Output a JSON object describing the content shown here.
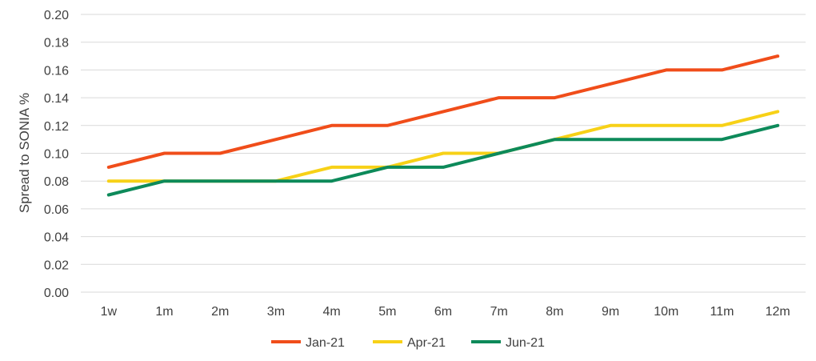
{
  "chart_data": {
    "type": "line",
    "title": "",
    "xlabel": "",
    "ylabel": "Spread to SONIA %",
    "ylim": [
      0,
      0.2
    ],
    "ytick_step": 0.02,
    "ytick_labels": [
      "0.00",
      "0.02",
      "0.04",
      "0.06",
      "0.08",
      "0.10",
      "0.12",
      "0.14",
      "0.16",
      "0.18",
      "0.20"
    ],
    "grid": true,
    "legend_position": "bottom",
    "categories": [
      "1w",
      "1m",
      "2m",
      "3m",
      "4m",
      "5m",
      "6m",
      "7m",
      "8m",
      "9m",
      "10m",
      "11m",
      "12m"
    ],
    "series": [
      {
        "name": "Jan-21",
        "color": "#f04d1a",
        "values": [
          0.09,
          0.1,
          0.1,
          0.11,
          0.12,
          0.12,
          0.13,
          0.14,
          0.14,
          0.15,
          0.16,
          0.16,
          0.17
        ]
      },
      {
        "name": "Apr-21",
        "color": "#f7d117",
        "values": [
          0.08,
          0.08,
          0.08,
          0.08,
          0.09,
          0.09,
          0.1,
          0.1,
          0.11,
          0.12,
          0.12,
          0.12,
          0.13
        ]
      },
      {
        "name": "Jun-21",
        "color": "#0d8a5a",
        "values": [
          0.07,
          0.08,
          0.08,
          0.08,
          0.08,
          0.09,
          0.09,
          0.1,
          0.11,
          0.11,
          0.11,
          0.11,
          0.12
        ]
      }
    ]
  }
}
